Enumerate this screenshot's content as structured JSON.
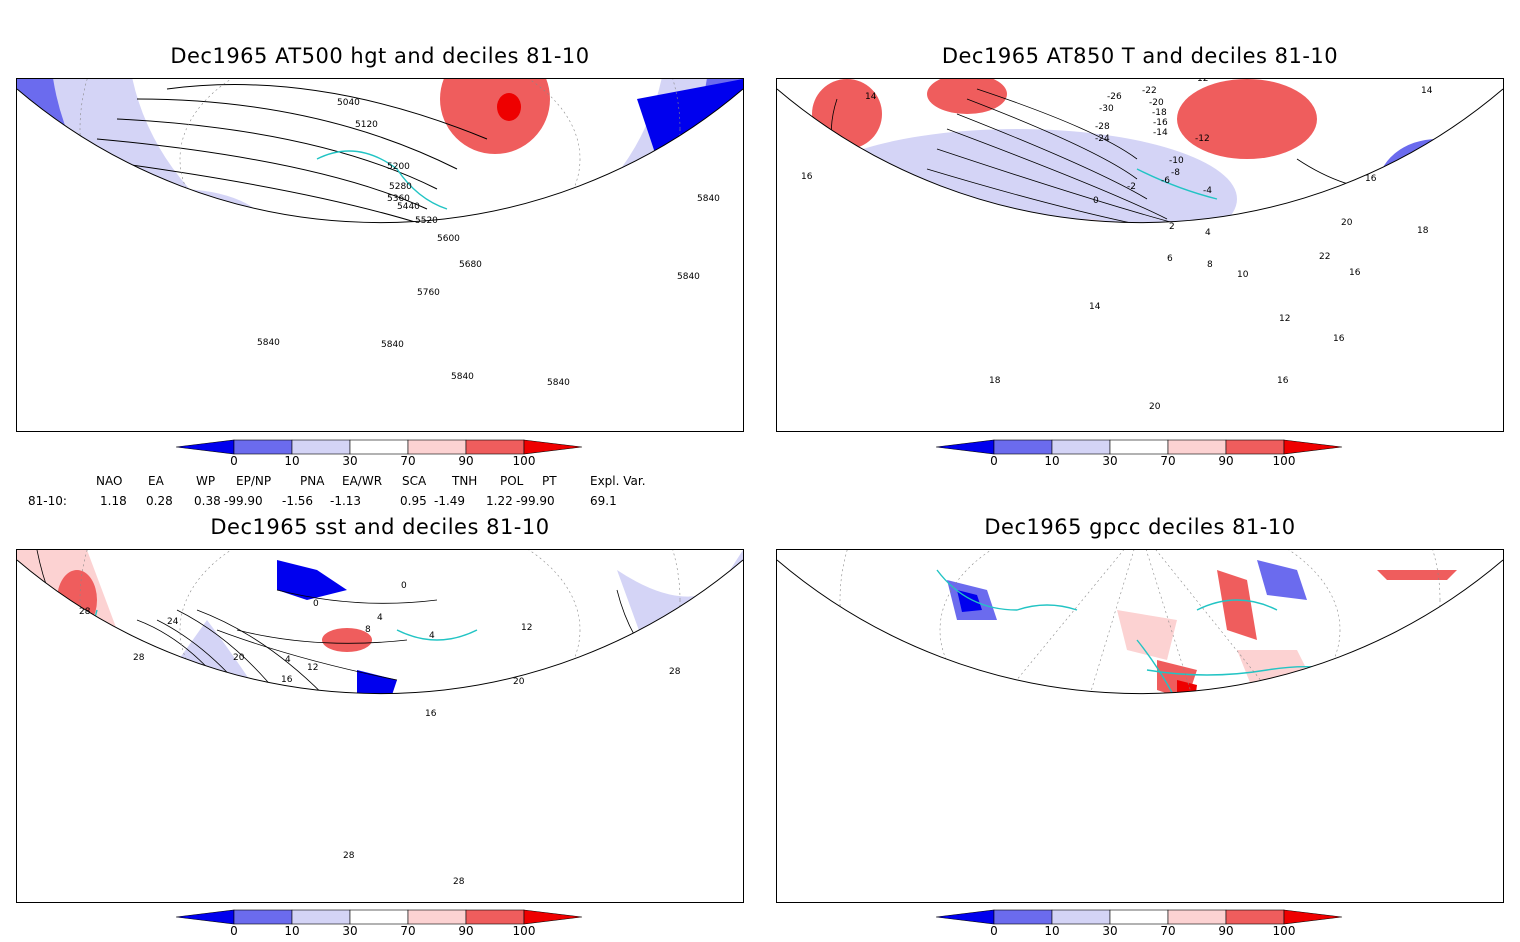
{
  "panels": [
    {
      "title": "Dec1965 AT500 hgt and deciles 81-10",
      "contour_labels": [
        "5040",
        "5120",
        "5200",
        "5280",
        "5360",
        "5440",
        "5520",
        "5600",
        "5680",
        "5760",
        "5840",
        "5840",
        "5840",
        "5840",
        "5840",
        "5840"
      ]
    },
    {
      "title": "Dec1965 AT850 T and deciles 81-10",
      "contour_labels": [
        "-26",
        "-30",
        "-22",
        "-20",
        "-18",
        "-28",
        "-24",
        "-16",
        "-14",
        "-12",
        "-10",
        "-8",
        "-6",
        "-4",
        "-2",
        "0",
        "2",
        "4",
        "6",
        "8",
        "10",
        "12",
        "14",
        "16",
        "18",
        "20",
        "22",
        "12",
        "14",
        "16",
        "18",
        "20",
        "16",
        "16",
        "14",
        "16"
      ]
    },
    {
      "title": "Dec1965 sst and deciles 81-10",
      "contour_labels": [
        "28",
        "24",
        "28",
        "20",
        "16",
        "12",
        "8",
        "4",
        "4",
        "0",
        "0",
        "4",
        "16",
        "20",
        "12",
        "28",
        "28",
        "28"
      ]
    },
    {
      "title": "Dec1965 gpcc deciles 81-10",
      "contour_labels": []
    }
  ],
  "colorbar": {
    "ticks": [
      "0",
      "10",
      "30",
      "70",
      "90",
      "100"
    ],
    "colors": [
      "#0000ee",
      "#6b6bee",
      "#d4d4f6",
      "#ffffff",
      "#fcd2d2",
      "#ef5d5d",
      "#ee0000"
    ]
  },
  "indices": {
    "headers": [
      "NAO",
      "EA",
      "WP",
      "EP/NP",
      "PNA",
      "EA/WR",
      "SCA",
      "TNH",
      "POL",
      "PT",
      "Expl. Var."
    ],
    "row_label": "81-10:",
    "values": [
      "1.18",
      "0.28",
      "0.38",
      "-99.90",
      "-1.56",
      "-1.13",
      "0.95",
      "-1.49",
      "1.22",
      "-99.90",
      "69.1"
    ]
  }
}
